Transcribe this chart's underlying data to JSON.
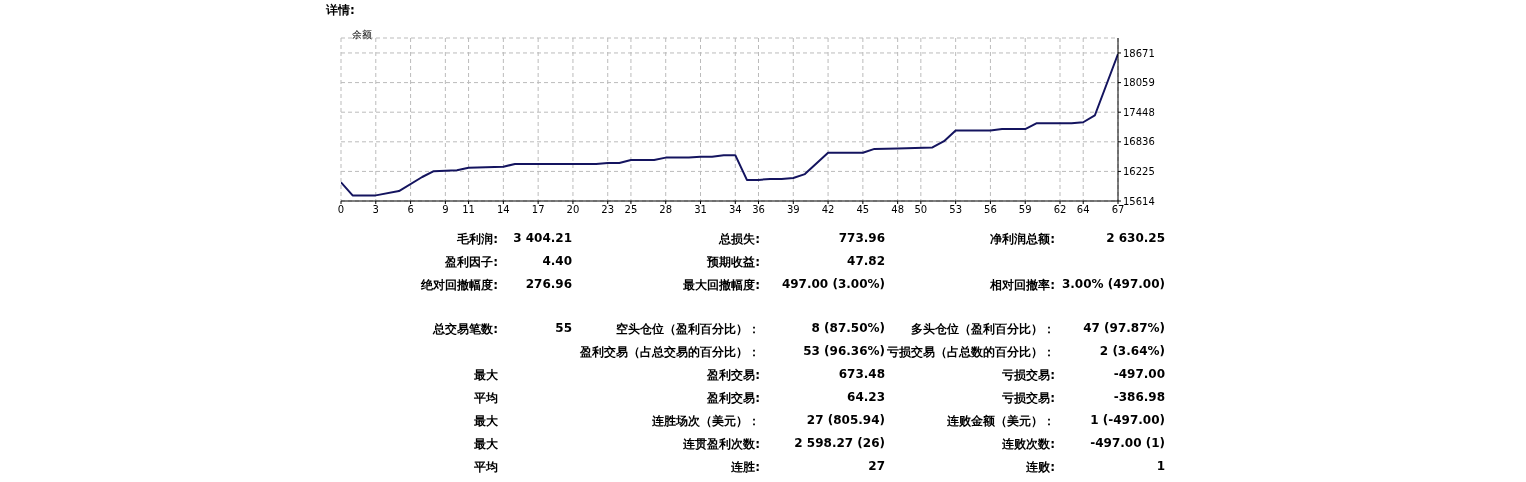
{
  "chart_data": {
    "type": "line",
    "title": "详情:",
    "legend": "top left",
    "grid": true,
    "marker": "none",
    "line_style": "solid",
    "series": [
      {
        "name": "余额",
        "color": "#14145f",
        "x": [
          0,
          1,
          3,
          5,
          7,
          8,
          10,
          11,
          14,
          15,
          22,
          23,
          24,
          25,
          27,
          28,
          30,
          31,
          32,
          33,
          34,
          35,
          36,
          37,
          38,
          39,
          40,
          42,
          45,
          46,
          48,
          51,
          52,
          53,
          56,
          57,
          59,
          60,
          63,
          64,
          65,
          67
        ],
        "values": [
          16000,
          15730,
          15730,
          15820,
          16110,
          16230,
          16250,
          16300,
          16320,
          16380,
          16380,
          16400,
          16400,
          16460,
          16460,
          16510,
          16510,
          16530,
          16530,
          16560,
          16560,
          16050,
          16050,
          16070,
          16070,
          16090,
          16170,
          16610,
          16610,
          16690,
          16700,
          16720,
          16850,
          17070,
          17070,
          17100,
          17100,
          17220,
          17220,
          17240,
          17380,
          18650
        ]
      }
    ],
    "xlim": [
      0,
      67
    ],
    "xticks": [
      0,
      3,
      6,
      9,
      11,
      14,
      17,
      20,
      23,
      25,
      28,
      31,
      34,
      36,
      39,
      42,
      45,
      48,
      50,
      53,
      56,
      59,
      62,
      64,
      67
    ],
    "ylim": [
      15614,
      18980
    ],
    "yticks": [
      15614,
      16225,
      16836,
      17448,
      18059,
      18671
    ],
    "annotations": [
      "毛利润:",
      "3 404.21",
      "总损失:",
      "773.96",
      "净利润总额:",
      "2 630.25",
      "盈利因子:",
      "4.40",
      "预期收益:",
      "47.82",
      "绝对回撤幅度:",
      "276.96",
      "最大回撤幅度:",
      "497.00 (3.00%)",
      "相对回撤率:",
      "3.00% (497.00)",
      "总交易笔数:",
      "55",
      "空头仓位（盈利百分比）：",
      "8 (87.50%)",
      "多头仓位（盈利百分比）：",
      "47 (97.87%)",
      "盈利交易（占总交易的百分比）：",
      "53 (96.36%)",
      "亏损交易（占总数的百分比）：",
      "2 (3.64%)",
      "最大",
      "盈利交易:",
      "673.48",
      "亏损交易:",
      "-497.00",
      "平均",
      "盈利交易:",
      "64.23",
      "亏损交易:",
      "-386.98",
      "最大",
      "连胜场次（美元）：",
      "27 (805.94)",
      "连败金额（美元）：",
      "1 (-497.00)",
      "最大",
      "连贯盈利次数:",
      "2 598.27 (26)",
      "连败次数:",
      "-497.00 (1)",
      "平均",
      "连胜:",
      "27",
      "连败:",
      "1"
    ]
  }
}
